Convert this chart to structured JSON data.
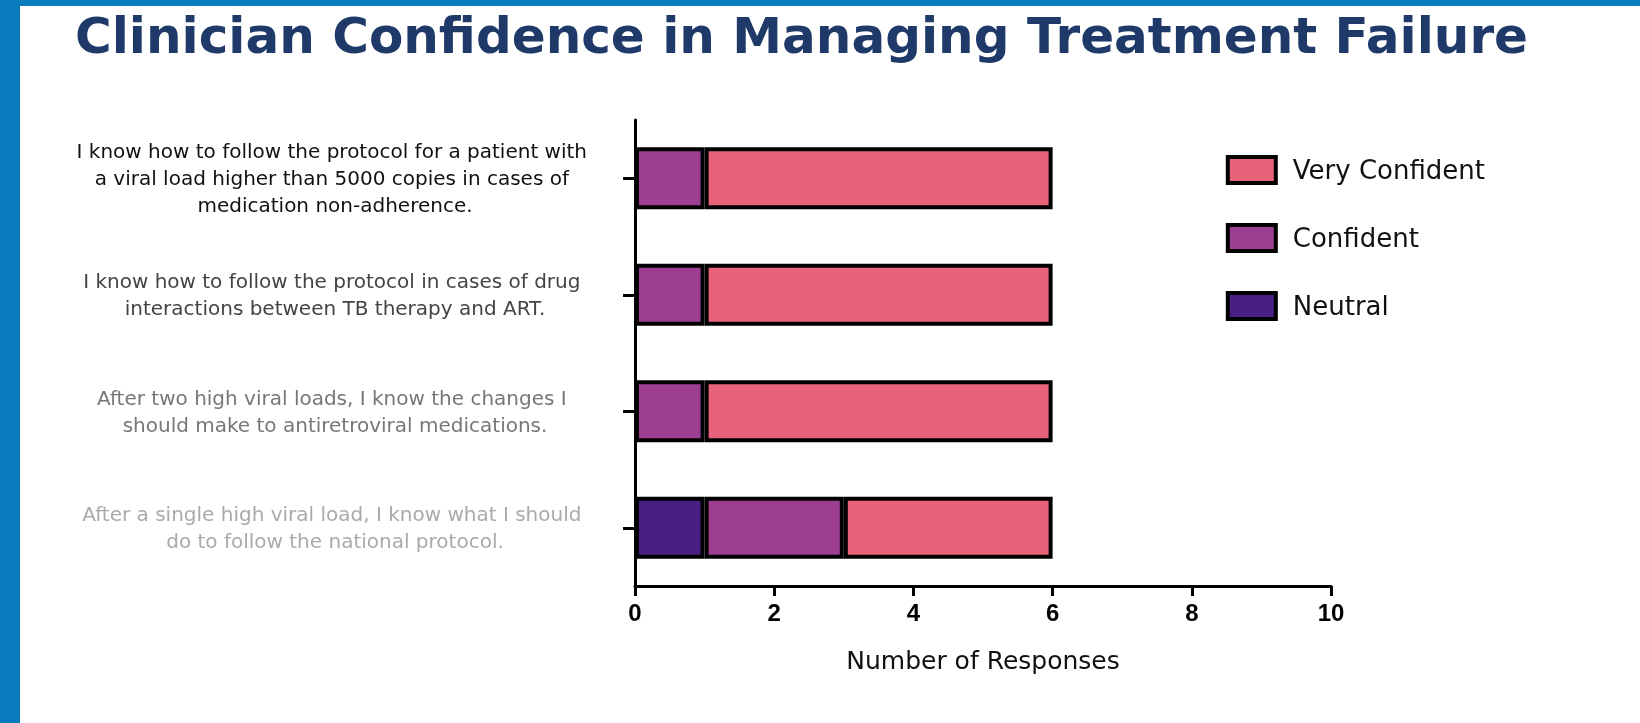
{
  "chart_data": {
    "type": "bar",
    "orientation": "horizontal",
    "stacked": true,
    "title": "Clinician Confidence in Managing Treatment Failure",
    "xlabel": "Number of Responses",
    "categories": [
      "I know how to follow the protocol for a patient with a viral load higher than 5000 copies in cases of medication non-adherence.",
      "I know how to follow the protocol in cases of drug interactions between TB therapy and ART.",
      "After two high viral loads, I know the changes I should make to antiretroviral medications.",
      "After a single high viral load, I know what I should do to follow the national protocol."
    ],
    "series": [
      {
        "name": "Neutral",
        "color": "#4a1f82",
        "values": [
          0,
          0,
          0,
          1
        ]
      },
      {
        "name": "Confident",
        "color": "#9c3f93",
        "values": [
          1,
          1,
          1,
          2
        ]
      },
      {
        "name": "Very Confident",
        "color": "#e8637a",
        "values": [
          5,
          5,
          5,
          3
        ]
      }
    ],
    "xlim": [
      0,
      10
    ],
    "xticks": [
      0,
      2,
      4,
      6,
      8,
      10
    ],
    "grid": false,
    "legend": "right"
  }
}
